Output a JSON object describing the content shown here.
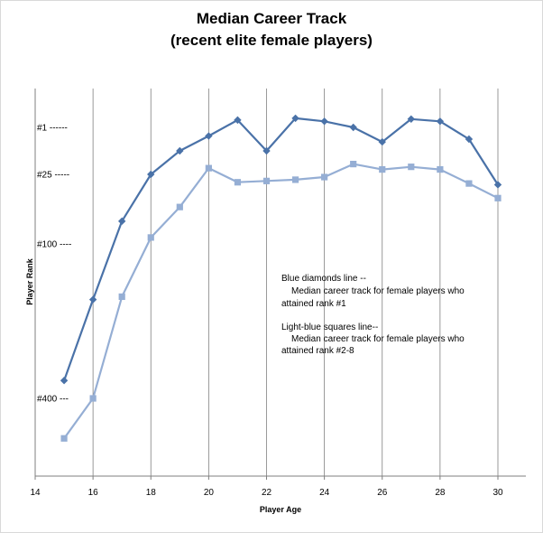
{
  "chart_data": {
    "type": "line",
    "title": "Median Career Track",
    "subtitle": "(recent elite female players)",
    "xlabel": "Player Age",
    "ylabel": "Player Rank",
    "xlim": [
      14,
      31
    ],
    "ylim_rank": [
      1,
      520
    ],
    "x_ticks": [
      14,
      16,
      18,
      20,
      22,
      24,
      26,
      28,
      30
    ],
    "x_tick_labels": [
      "14",
      "16",
      "18",
      "20",
      "22",
      "24",
      "26",
      "28",
      "30"
    ],
    "y_ticks": [
      {
        "rank": 1,
        "label": "#1 ------"
      },
      {
        "rank": 25,
        "label": "#25 -----"
      },
      {
        "rank": 100,
        "label": "#100 ----"
      },
      {
        "rank": 400,
        "label": "#400 ---"
      }
    ],
    "grid": "vertical",
    "series": [
      {
        "color": "#4a72a8",
        "marker": "diamond",
        "x": [
          15,
          16,
          17,
          18,
          19,
          20,
          21,
          22,
          23,
          24,
          25,
          26,
          27,
          28,
          29,
          30
        ],
        "y": [
          355,
          185,
          70,
          25,
          9,
          3,
          -2,
          9,
          -4,
          -1,
          1,
          5,
          -3,
          -1,
          4,
          33
        ]
      },
      {
        "color": "#95aed4",
        "marker": "square",
        "x": [
          15,
          16,
          17,
          18,
          19,
          20,
          21,
          22,
          23,
          24,
          25,
          26,
          27,
          28,
          29,
          30
        ],
        "y": [
          480,
          400,
          180,
          91,
          54,
          20,
          31,
          30,
          29,
          27,
          17,
          21,
          19,
          21,
          32,
          45
        ]
      }
    ],
    "annotations": [
      "Blue diamonds line --",
      "Median career track for female players who",
      "attained rank #1",
      "Light-blue squares line--",
      "Median career track for  female players who",
      "attained rank #2-8"
    ]
  }
}
